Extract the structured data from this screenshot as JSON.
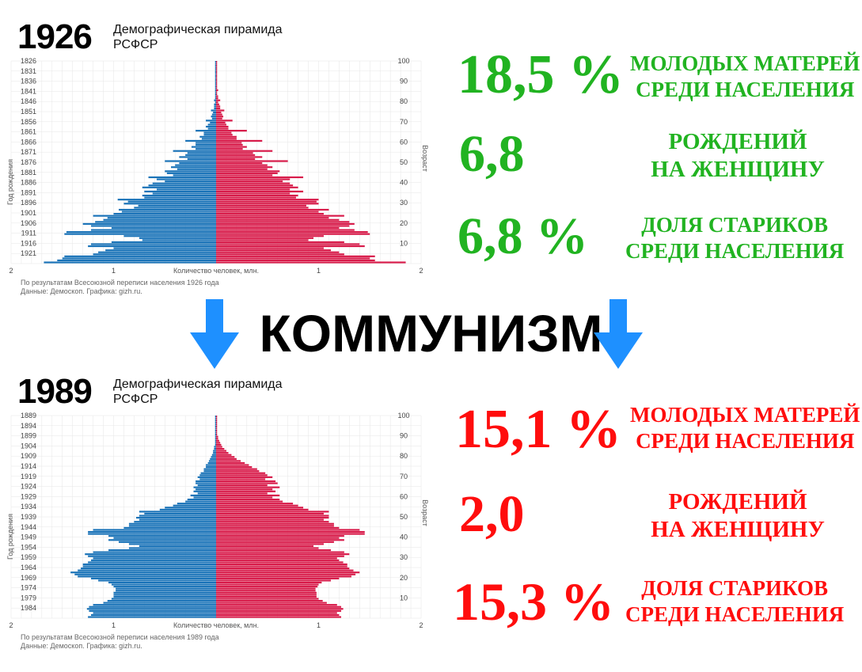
{
  "colors": {
    "male": "#1a73b8",
    "female": "#d81b4a",
    "good": "#21b321",
    "bad": "#ff0d0d",
    "arrow": "#1e90ff",
    "grid": "#e6e6e6"
  },
  "center_word": "КОММУНИЗМ",
  "arrow_icon": "arrow-down-icon",
  "panels": [
    {
      "year": "1926",
      "title_line1": "Демографическая пирамида",
      "title_line2": "РСФСР",
      "note_line1": "По результатам Всесоюзной переписи населения 1926 года",
      "note_line2": "Данные: Демоскоп. Графика: gizh.ru.",
      "stats": [
        {
          "value": "18,5 %",
          "label_line1": "МОЛОДЫХ МАТЕРЕЙ",
          "label_line2": "СРЕДИ НАСЕЛЕНИЯ"
        },
        {
          "value": "6,8",
          "label_line1": "РОЖДЕНИЙ",
          "label_line2": "НА ЖЕНЩИНУ"
        },
        {
          "value": "6,8 %",
          "label_line1": "ДОЛЯ СТАРИКОВ",
          "label_line2": "СРЕДИ НАСЕЛЕНИЯ"
        }
      ]
    },
    {
      "year": "1989",
      "title_line1": "Демографическая пирамида",
      "title_line2": "РСФСР",
      "note_line1": "По результатам Всесоюзной переписи населения 1989 года",
      "note_line2": "Данные: Демоскоп. Графика: gizh.ru.",
      "stats": [
        {
          "value": "15,1 %",
          "label_line1": "МОЛОДЫХ МАТЕРЕЙ",
          "label_line2": "СРЕДИ НАСЕЛЕНИЯ"
        },
        {
          "value": "2,0",
          "label_line1": "РОЖДЕНИЙ",
          "label_line2": "НА ЖЕНЩИНУ"
        },
        {
          "value": "15,3 %",
          "label_line1": "ДОЛЯ СТАРИКОВ",
          "label_line2": "СРЕДИ НАСЕЛЕНИЯ"
        }
      ]
    }
  ],
  "chart_data": [
    {
      "type": "bar",
      "orientation": "horizontal-pyramid",
      "title": "Демографическая пирамида РСФСР",
      "xlabel": "Количество человек, млн.",
      "ylabel_left": "Год рождения",
      "ylabel_right": "Возраст",
      "x_ticks_left": [
        "2",
        "1"
      ],
      "x_ticks_right": [
        "1",
        "2"
      ],
      "xlim": [
        0,
        2
      ],
      "y_left_ticks": [
        "1826",
        "1831",
        "1836",
        "1841",
        "1846",
        "1851",
        "1856",
        "1861",
        "1866",
        "1871",
        "1876",
        "1881",
        "1886",
        "1891",
        "1896",
        "1901",
        "1906",
        "1911",
        "1916",
        "1921"
      ],
      "y_right_ticks": [
        "100",
        "90",
        "80",
        "70",
        "60",
        "50",
        "40",
        "30",
        "20",
        "10"
      ],
      "ages_top": 100,
      "ages_bottom": 0,
      "series": [
        {
          "name": "male",
          "values": [
            1.68,
            1.55,
            1.5,
            1.48,
            1.2,
            1.15,
            1.08,
            1.0,
            1.25,
            1.22,
            1.02,
            0.72,
            0.75,
            0.9,
            1.48,
            1.46,
            1.22,
            1.02,
            1.22,
            1.3,
            1.18,
            1.1,
            1.06,
            1.2,
            1.0,
            0.92,
            0.95,
            0.8,
            0.76,
            0.9,
            0.86,
            0.96,
            0.7,
            0.72,
            0.62,
            0.7,
            0.58,
            0.72,
            0.66,
            0.62,
            0.5,
            0.58,
            0.66,
            0.42,
            0.48,
            0.5,
            0.38,
            0.44,
            0.4,
            0.36,
            0.5,
            0.28,
            0.36,
            0.3,
            0.28,
            0.42,
            0.2,
            0.24,
            0.2,
            0.2,
            0.3,
            0.14,
            0.16,
            0.12,
            0.12,
            0.2,
            0.08,
            0.1,
            0.08,
            0.06,
            0.1,
            0.04,
            0.05,
            0.04,
            0.03,
            0.05,
            0.02,
            0.02,
            0.02,
            0.01,
            0.02,
            0.01,
            0.01,
            0.01,
            0.01,
            0.01,
            0.01,
            0.01,
            0.01,
            0.01,
            0.01,
            0.01,
            0.01,
            0.01,
            0.01,
            0.01,
            0.01,
            0.01,
            0.01,
            0.01
          ]
        },
        {
          "name": "female",
          "values": [
            1.85,
            1.55,
            1.5,
            1.55,
            1.25,
            1.2,
            1.12,
            1.05,
            1.45,
            1.4,
            1.25,
            0.9,
            0.95,
            1.05,
            1.5,
            1.48,
            1.35,
            1.2,
            1.3,
            1.35,
            1.3,
            1.2,
            1.1,
            1.25,
            1.05,
            1.0,
            1.1,
            0.9,
            0.88,
            1.0,
            0.98,
            1.0,
            0.78,
            0.8,
            0.72,
            0.85,
            0.72,
            0.8,
            0.75,
            0.72,
            0.65,
            0.72,
            0.85,
            0.55,
            0.6,
            0.62,
            0.5,
            0.55,
            0.5,
            0.45,
            0.7,
            0.38,
            0.45,
            0.38,
            0.36,
            0.55,
            0.26,
            0.3,
            0.26,
            0.25,
            0.45,
            0.2,
            0.2,
            0.16,
            0.15,
            0.3,
            0.12,
            0.12,
            0.1,
            0.09,
            0.16,
            0.06,
            0.07,
            0.06,
            0.05,
            0.08,
            0.04,
            0.04,
            0.03,
            0.02,
            0.04,
            0.02,
            0.02,
            0.01,
            0.01,
            0.02,
            0.01,
            0.01,
            0.01,
            0.01,
            0.01,
            0.01,
            0.01,
            0.01,
            0.01,
            0.01,
            0.01,
            0.01,
            0.01,
            0.01
          ]
        }
      ],
      "grid": true
    },
    {
      "type": "bar",
      "orientation": "horizontal-pyramid",
      "title": "Демографическая пирамида РСФСР",
      "xlabel": "Количество человек, млн.",
      "ylabel_left": "Год рождения",
      "ylabel_right": "Возраст",
      "x_ticks_left": [
        "2",
        "1"
      ],
      "x_ticks_right": [
        "1",
        "2"
      ],
      "xlim": [
        0,
        2
      ],
      "y_left_ticks": [
        "1889",
        "1894",
        "1899",
        "1904",
        "1909",
        "1914",
        "1919",
        "1924",
        "1929",
        "1934",
        "1939",
        "1944",
        "1949",
        "1954",
        "1959",
        "1964",
        "1969",
        "1974",
        "1979",
        "1984"
      ],
      "y_right_ticks": [
        "100",
        "90",
        "80",
        "70",
        "60",
        "50",
        "40",
        "30",
        "20",
        "10"
      ],
      "ages_top": 100,
      "ages_bottom": 0,
      "series": [
        {
          "name": "male",
          "values": [
            1.25,
            1.22,
            1.2,
            1.24,
            1.26,
            1.24,
            1.2,
            1.1,
            1.06,
            1.02,
            1.0,
            1.0,
            1.0,
            0.98,
            0.98,
            1.0,
            1.02,
            1.05,
            1.15,
            1.22,
            1.35,
            1.38,
            1.42,
            1.35,
            1.32,
            1.3,
            1.3,
            1.25,
            1.22,
            1.2,
            1.25,
            1.28,
            1.2,
            1.05,
            0.85,
            0.75,
            0.85,
            0.95,
            1.05,
            1.0,
            1.05,
            1.25,
            1.25,
            1.2,
            0.9,
            0.85,
            0.85,
            0.8,
            0.75,
            0.78,
            0.75,
            0.7,
            0.75,
            0.55,
            0.5,
            0.42,
            0.38,
            0.3,
            0.28,
            0.22,
            0.25,
            0.18,
            0.22,
            0.2,
            0.22,
            0.18,
            0.2,
            0.2,
            0.16,
            0.18,
            0.16,
            0.15,
            0.12,
            0.12,
            0.1,
            0.1,
            0.08,
            0.07,
            0.06,
            0.05,
            0.04,
            0.03,
            0.03,
            0.02,
            0.02,
            0.01,
            0.01,
            0.01,
            0.01,
            0.01,
            0.01,
            0.01,
            0.01,
            0.01,
            0.01,
            0.01,
            0.01,
            0.01,
            0.01,
            0.01
          ]
        },
        {
          "name": "female",
          "values": [
            1.22,
            1.2,
            1.18,
            1.22,
            1.24,
            1.22,
            1.18,
            1.08,
            1.04,
            1.0,
            0.98,
            0.98,
            0.98,
            0.97,
            0.97,
            0.99,
            1.0,
            1.03,
            1.12,
            1.2,
            1.32,
            1.36,
            1.4,
            1.34,
            1.3,
            1.28,
            1.28,
            1.24,
            1.2,
            1.18,
            1.25,
            1.3,
            1.25,
            1.12,
            1.0,
            0.95,
            1.05,
            1.15,
            1.25,
            1.2,
            1.25,
            1.45,
            1.45,
            1.4,
            1.2,
            1.15,
            1.15,
            1.1,
            1.05,
            1.1,
            1.1,
            1.05,
            1.1,
            0.9,
            0.85,
            0.8,
            0.75,
            0.65,
            0.62,
            0.55,
            0.62,
            0.5,
            0.58,
            0.55,
            0.62,
            0.5,
            0.6,
            0.58,
            0.48,
            0.55,
            0.5,
            0.48,
            0.42,
            0.4,
            0.35,
            0.32,
            0.28,
            0.24,
            0.2,
            0.18,
            0.15,
            0.12,
            0.1,
            0.08,
            0.06,
            0.05,
            0.04,
            0.03,
            0.02,
            0.02,
            0.01,
            0.01,
            0.01,
            0.01,
            0.01,
            0.01,
            0.01,
            0.01,
            0.01,
            0.01
          ]
        }
      ],
      "grid": true
    }
  ]
}
